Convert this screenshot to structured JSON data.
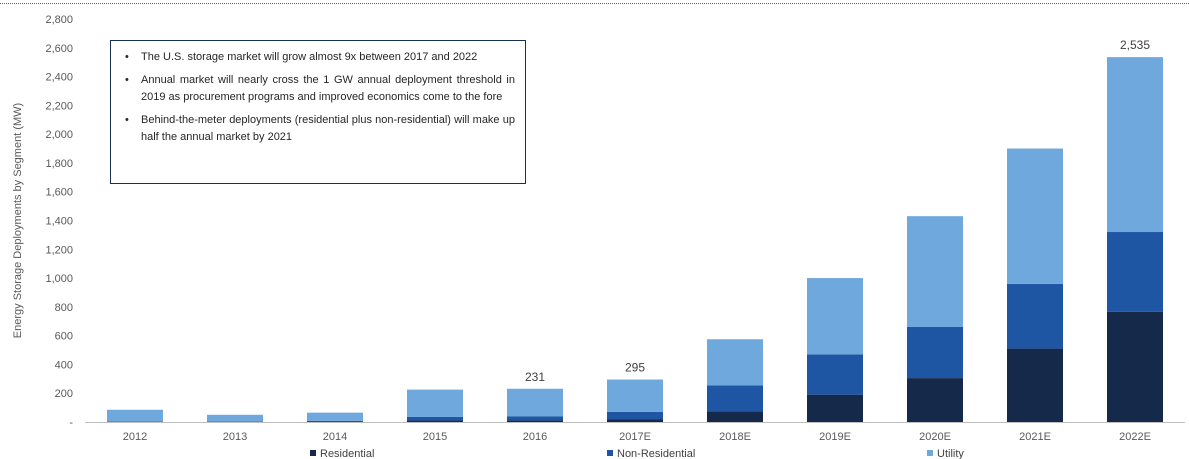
{
  "chart_data": {
    "type": "bar",
    "stacked": true,
    "title": "",
    "xlabel": "",
    "ylabel": "Energy Storage Deployments by Segment (MW)",
    "ylim": [
      0,
      2800
    ],
    "yticks": [
      0,
      200,
      400,
      600,
      800,
      1000,
      1200,
      1400,
      1600,
      1800,
      2000,
      2200,
      2400,
      2600,
      2800
    ],
    "ytick_labels": [
      "-",
      "200",
      "400",
      "600",
      "800",
      "1,000",
      "1,200",
      "1,400",
      "1,600",
      "1,800",
      "2,000",
      "2,200",
      "2,400",
      "2,600",
      "2,800"
    ],
    "grid": false,
    "legend_position": "bottom",
    "categories": [
      "2012",
      "2013",
      "2014",
      "2015",
      "2016",
      "2017E",
      "2018E",
      "2019E",
      "2020E",
      "2021E",
      "2022E"
    ],
    "series": [
      {
        "name": "Residential",
        "color": "#15294a",
        "values": [
          2,
          2,
          3,
          10,
          10,
          20,
          75,
          190,
          305,
          510,
          765
        ]
      },
      {
        "name": "Non-Residential",
        "color": "#1f56a4",
        "values": [
          3,
          3,
          5,
          25,
          30,
          50,
          180,
          280,
          355,
          450,
          555
        ]
      },
      {
        "name": "Utility",
        "color": "#6fa8dc",
        "values": [
          80,
          45,
          57,
          190,
          191,
          225,
          320,
          530,
          770,
          940,
          1215
        ]
      }
    ],
    "data_labels": [
      {
        "category": "2016",
        "text": "231"
      },
      {
        "category": "2017E",
        "text": "295"
      },
      {
        "category": "2022E",
        "text": "2,535"
      }
    ]
  },
  "callout": {
    "bullets": [
      "The U.S. storage market will grow almost 9x between 2017 and 2022",
      "Annual market will nearly cross the 1 GW annual deployment threshold in 2019 as procurement programs and improved economics come to the fore",
      "Behind-the-meter deployments (residential plus non-residential) will make up half the annual market by 2021"
    ]
  }
}
